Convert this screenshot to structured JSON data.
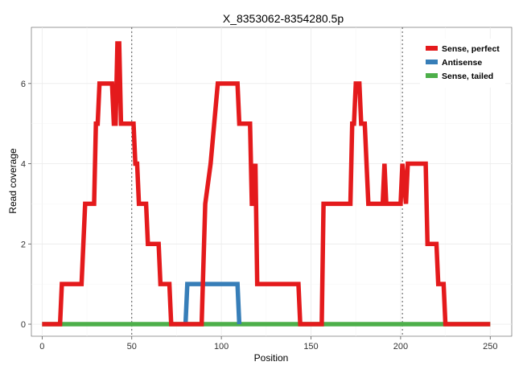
{
  "chart_data": {
    "type": "line",
    "title": "X_8353062-8354280.5p",
    "xlabel": "Position",
    "ylabel": "Read coverage",
    "xlim": [
      -6,
      262
    ],
    "ylim": [
      -0.3,
      7.4
    ],
    "xticks": [
      0,
      50,
      100,
      150,
      200,
      250
    ],
    "yticks": [
      0,
      2,
      4,
      6
    ],
    "grid": true,
    "legend_position": "top-right",
    "vlines": [
      50,
      201
    ],
    "series": [
      {
        "name": "Sense, perfect",
        "color": "#e41a1c",
        "points": [
          [
            0,
            0
          ],
          [
            10,
            0
          ],
          [
            11,
            1
          ],
          [
            22,
            1
          ],
          [
            24,
            3
          ],
          [
            29,
            3
          ],
          [
            30,
            5
          ],
          [
            31,
            5
          ],
          [
            32,
            6
          ],
          [
            39,
            6
          ],
          [
            40,
            5
          ],
          [
            41,
            5
          ],
          [
            42,
            7
          ],
          [
            43,
            7
          ],
          [
            44,
            5
          ],
          [
            51,
            5
          ],
          [
            52,
            4
          ],
          [
            53,
            4
          ],
          [
            54,
            3
          ],
          [
            58,
            3
          ],
          [
            59,
            2
          ],
          [
            62,
            2
          ],
          [
            63,
            2
          ],
          [
            65,
            2
          ],
          [
            66,
            1
          ],
          [
            71,
            1
          ],
          [
            72,
            0
          ],
          [
            89,
            0
          ],
          [
            91,
            3
          ],
          [
            94,
            4
          ],
          [
            96,
            5
          ],
          [
            98,
            6
          ],
          [
            109,
            6
          ],
          [
            110,
            5
          ],
          [
            116,
            5
          ],
          [
            117,
            3
          ],
          [
            118,
            3
          ],
          [
            119,
            4
          ],
          [
            120,
            1
          ],
          [
            143,
            1
          ],
          [
            144,
            0
          ],
          [
            156,
            0
          ],
          [
            157,
            3
          ],
          [
            172,
            3
          ],
          [
            173,
            5
          ],
          [
            174,
            5
          ],
          [
            175,
            6
          ],
          [
            177,
            6
          ],
          [
            178,
            5
          ],
          [
            180,
            5
          ],
          [
            181,
            4
          ],
          [
            182,
            3
          ],
          [
            190,
            3
          ],
          [
            191,
            4
          ],
          [
            192,
            3
          ],
          [
            200,
            3
          ],
          [
            201,
            4
          ],
          [
            203,
            3
          ],
          [
            204,
            4
          ],
          [
            214,
            4
          ],
          [
            215,
            2
          ],
          [
            220,
            2
          ],
          [
            221,
            1
          ],
          [
            224,
            1
          ],
          [
            225,
            0
          ],
          [
            250,
            0
          ]
        ]
      },
      {
        "name": "Antisense",
        "color": "#377eb8",
        "points": [
          [
            80,
            0
          ],
          [
            81,
            1
          ],
          [
            109,
            1
          ],
          [
            110,
            0
          ]
        ]
      },
      {
        "name": "Sense, tailed",
        "color": "#4daf4a",
        "points": [
          [
            0,
            0
          ],
          [
            250,
            0
          ]
        ]
      }
    ]
  }
}
